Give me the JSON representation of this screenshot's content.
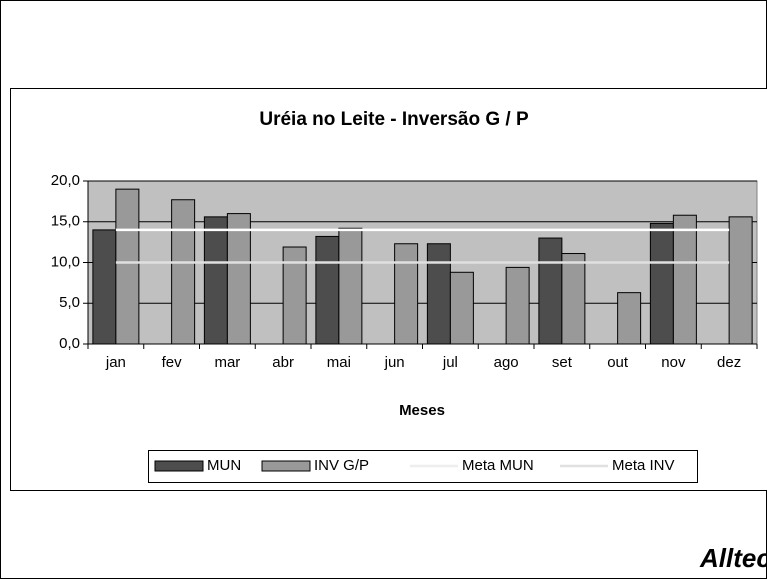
{
  "chart_data": {
    "type": "bar",
    "title": "Uréia no Leite - Inversão G / P",
    "x_label": "Meses",
    "categories": [
      "jan",
      "fev",
      "mar",
      "abr",
      "mai",
      "jun",
      "jul",
      "ago",
      "set",
      "out",
      "nov",
      "dez"
    ],
    "series": [
      {
        "name": "MUN",
        "type": "bar",
        "color": "#4d4d4d",
        "values": [
          14.0,
          null,
          15.6,
          null,
          13.2,
          null,
          12.3,
          null,
          13.0,
          null,
          14.8,
          null
        ]
      },
      {
        "name": "INV G/P",
        "type": "bar",
        "color": "#999999",
        "values": [
          19.0,
          17.7,
          16.0,
          11.9,
          14.2,
          12.3,
          8.8,
          9.4,
          11.1,
          6.3,
          15.8,
          15.6
        ]
      },
      {
        "name": "Meta MUN",
        "type": "line",
        "color": "#ffffff",
        "values": [
          14,
          14,
          14,
          14,
          14,
          14,
          14,
          14,
          14,
          14,
          14,
          14
        ]
      },
      {
        "name": "Meta INV",
        "type": "line",
        "color": "#e0e0e0",
        "values": [
          10,
          10,
          10,
          10,
          10,
          10,
          10,
          10,
          10,
          10,
          10,
          10
        ]
      }
    ],
    "ylim": [
      0,
      20
    ],
    "yticks": [
      {
        "value": 0,
        "label": "0,0"
      },
      {
        "value": 5,
        "label": "5,0"
      },
      {
        "value": 10,
        "label": "10,0"
      },
      {
        "value": 15,
        "label": "15,0"
      },
      {
        "value": 20,
        "label": "20,0"
      }
    ],
    "grid": true,
    "legend": "bottom",
    "plot_background": "#c0c0c0"
  },
  "logo": "Alltech"
}
